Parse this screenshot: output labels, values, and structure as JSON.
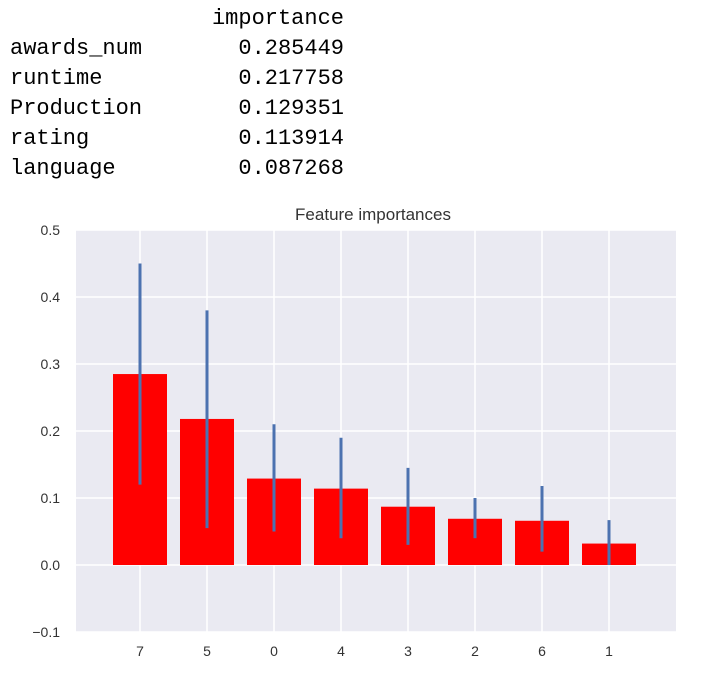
{
  "table": {
    "header": "importance",
    "rows": [
      {
        "index": "awards_num",
        "value": "0.285449"
      },
      {
        "index": "runtime",
        "value": "0.217758"
      },
      {
        "index": "Production",
        "value": "0.129351"
      },
      {
        "index": "rating",
        "value": "0.113914"
      },
      {
        "index": "language",
        "value": "0.087268"
      }
    ]
  },
  "chart_data": {
    "type": "bar",
    "title": "Feature importances",
    "xlabel": "",
    "ylabel": "",
    "categories": [
      "7",
      "5",
      "0",
      "4",
      "3",
      "2",
      "6",
      "1"
    ],
    "values": [
      0.285,
      0.218,
      0.129,
      0.114,
      0.087,
      0.069,
      0.066,
      0.032
    ],
    "error_low": [
      0.12,
      0.055,
      0.05,
      0.04,
      0.03,
      0.04,
      0.02,
      0.0
    ],
    "error_high": [
      0.45,
      0.38,
      0.21,
      0.19,
      0.145,
      0.1,
      0.118,
      0.067
    ],
    "y_ticks": [
      "0.5",
      "0.4",
      "0.3",
      "0.2",
      "0.1",
      "0.0",
      "−0.1"
    ],
    "ylim": [
      -0.1,
      0.5
    ],
    "grid": true,
    "colors": {
      "bar": "#ff0000",
      "error_bar": "#4c72b0",
      "background": "#eaeaf2",
      "grid": "#ffffff"
    }
  }
}
